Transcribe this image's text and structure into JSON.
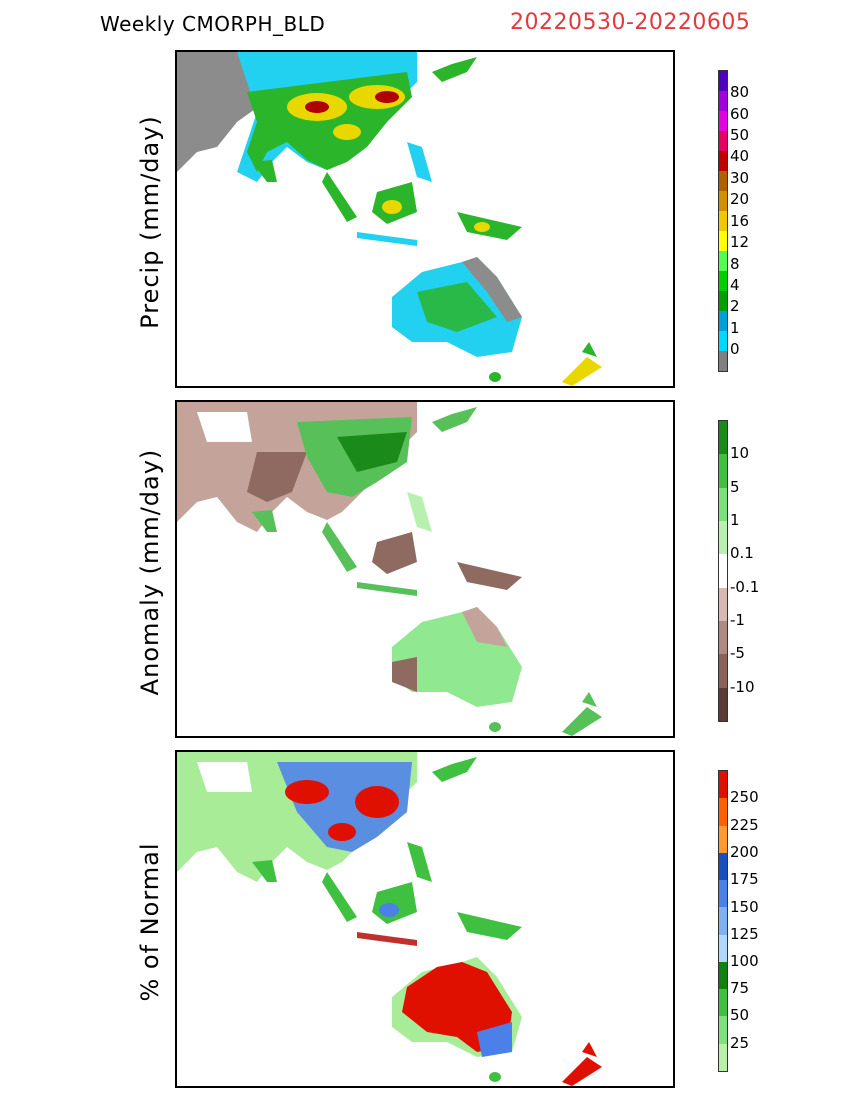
{
  "header": {
    "title": "Weekly  CMORPH_BLD",
    "date_range": "20220530-20220605"
  },
  "panels": [
    {
      "ylabel": "Precip  (mm/day)",
      "colorbar": {
        "colors": [
          "#808080",
          "#00d8ff",
          "#00a0d8",
          "#00a000",
          "#00d000",
          "#50ff50",
          "#ffff00",
          "#f0c800",
          "#d09000",
          "#b06000",
          "#c00000",
          "#e80060",
          "#e000e0",
          "#a000e0",
          "#5000c0"
        ],
        "labels": [
          "0",
          "1",
          "2",
          "4",
          "8",
          "12",
          "16",
          "20",
          "30",
          "40",
          "50",
          "60",
          "80"
        ]
      }
    },
    {
      "ylabel": "Anomaly  (mm/day)",
      "colorbar": {
        "colors": [
          "#5a3a32",
          "#8c6258",
          "#b08a80",
          "#d8b8b0",
          "#ffffff",
          "#b8f0b0",
          "#7ce07c",
          "#40c040",
          "#1a8a1a"
        ],
        "labels": [
          "10",
          "5",
          "1",
          "0.1",
          "-0.1",
          "-1",
          "-5",
          "-10"
        ]
      }
    },
    {
      "ylabel": "% of Normal",
      "colorbar": {
        "colors": [
          "#b8f0a8",
          "#80e080",
          "#40c040",
          "#108010",
          "#b0d8ff",
          "#80b0f0",
          "#4a80e8",
          "#1850c0",
          "#ff9a30",
          "#ff6000",
          "#e01000"
        ],
        "labels": [
          "250",
          "225",
          "200",
          "175",
          "150",
          "125",
          "100",
          "75",
          "50",
          "25"
        ]
      }
    }
  ]
}
